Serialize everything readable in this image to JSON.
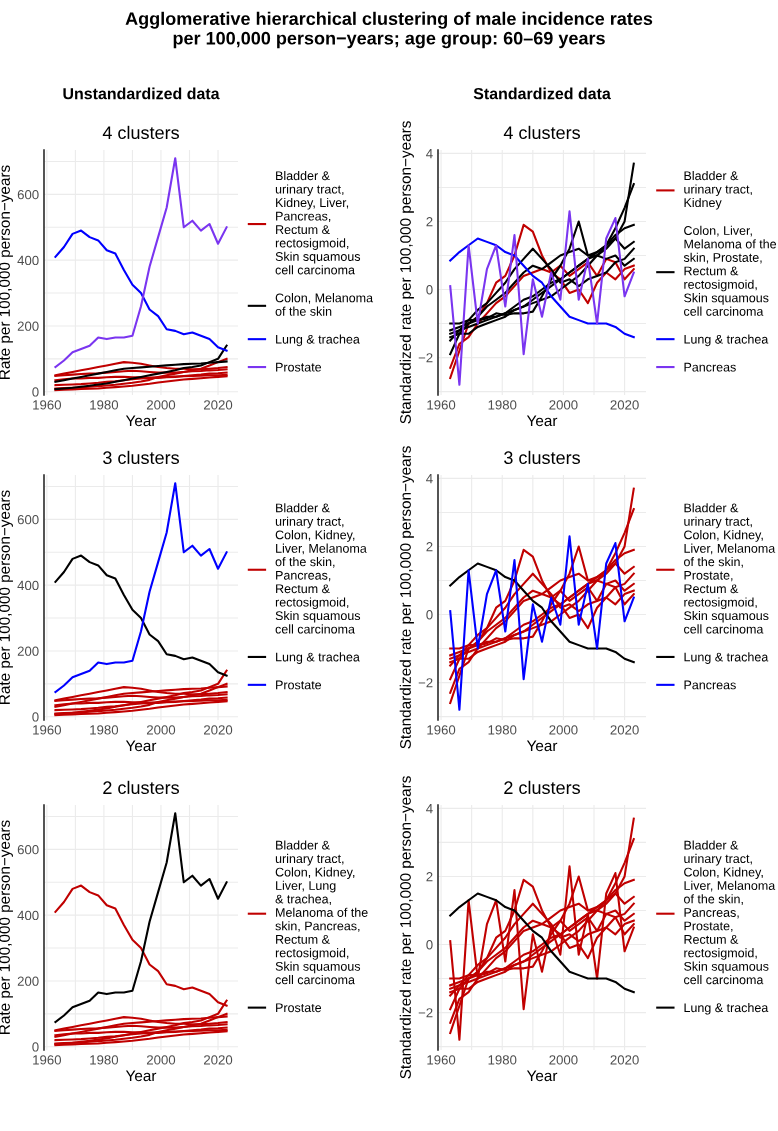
{
  "chart_data": [
    {
      "type": "line",
      "title": "4 clusters",
      "subtitle": "Unstandardized data",
      "annotations": [
        "Agglomerative hierarchical clustering of male incidence rates\nper 100,000 person−years; age group: 60–69 years"
      ],
      "xlabel": "Year",
      "ylabel": "Rate per 100,000 person−years",
      "grid": true,
      "legend": "right",
      "xlim": [
        1959,
        2027
      ],
      "ylim": [
        -10,
        735
      ],
      "xticks": [
        1960,
        {
          "value": 1970,
          "label": null
        },
        1980,
        {
          "value": 1990,
          "label": null
        },
        2000,
        {
          "value": 2010,
          "label": null
        },
        2020
      ],
      "yticks": [
        0,
        {
          "value": 100,
          "label": null
        },
        200,
        {
          "value": 300,
          "label": null
        },
        400,
        {
          "value": 500,
          "label": null
        },
        600,
        {
          "value": 700,
          "label": null
        }
      ],
      "x": [
        1963,
        1966,
        1969,
        1972,
        1975,
        1978,
        1981,
        1984,
        1987,
        1990,
        1993,
        1996,
        1999,
        2002,
        2005,
        2008,
        2011,
        2014,
        2017,
        2020,
        2023
      ],
      "series": [
        {
          "name": "Bladder &\nurinary tract,\nKidney, Liver,\nPancreas,\nRectum &\nrectosigmoid,\nSkin squamous\ncell carcinoma",
          "color": "#c00000",
          "values": [
            50,
            55,
            60,
            65,
            70,
            75,
            80,
            85,
            90,
            88,
            85,
            80,
            75,
            72,
            70,
            70,
            68,
            68,
            70,
            72,
            75
          ]
        },
        {
          "color": "#c00000",
          "values": [
            20,
            21,
            22,
            23,
            25,
            27,
            30,
            32,
            35,
            38,
            40,
            42,
            44,
            45,
            46,
            47,
            48,
            49,
            50,
            50,
            51
          ]
        },
        {
          "color": "#c00000",
          "values": [
            5,
            6,
            7,
            8,
            9,
            10,
            12,
            14,
            16,
            18,
            21,
            24,
            28,
            31,
            34,
            37,
            39,
            41,
            43,
            45,
            47
          ]
        },
        {
          "color": "#c00000",
          "values": [
            35,
            38,
            40,
            40,
            42,
            42,
            44,
            45,
            45,
            44,
            44,
            42,
            42,
            44,
            45,
            48,
            50,
            52,
            55,
            56,
            58
          ]
        },
        {
          "color": "#c00000",
          "values": [
            48,
            50,
            52,
            54,
            55,
            56,
            58,
            60,
            62,
            64,
            62,
            60,
            58,
            58,
            58,
            60,
            62,
            63,
            65,
            66,
            68
          ]
        },
        {
          "color": "#c00000",
          "values": [
            10,
            11,
            12,
            13,
            15,
            17,
            19,
            21,
            24,
            27,
            31,
            36,
            45,
            50,
            55,
            60,
            65,
            70,
            80,
            90,
            100
          ]
        },
        {
          "name": "Colon, Melanoma\nof the skin",
          "color": "#000000",
          "values": [
            30,
            35,
            40,
            45,
            50,
            55,
            60,
            65,
            70,
            72,
            74,
            76,
            78,
            80,
            82,
            84,
            85,
            86,
            88,
            90,
            92
          ]
        },
        {
          "color": "#000000",
          "values": [
            8,
            10,
            12,
            15,
            18,
            22,
            25,
            30,
            35,
            40,
            45,
            50,
            55,
            60,
            65,
            72,
            75,
            80,
            90,
            100,
            140
          ]
        },
        {
          "name": "Lung & trachea",
          "color": "#0000ff",
          "values": [
            410,
            440,
            480,
            490,
            470,
            460,
            430,
            420,
            370,
            325,
            300,
            250,
            230,
            190,
            185,
            175,
            180,
            170,
            160,
            135,
            125
          ]
        },
        {
          "name": "Prostate",
          "color": "#7a35f0",
          "values": [
            75,
            95,
            120,
            130,
            140,
            165,
            160,
            165,
            165,
            170,
            260,
            380,
            470,
            560,
            710,
            500,
            520,
            490,
            510,
            450,
            500
          ]
        }
      ]
    },
    {
      "type": "line",
      "title": "4 clusters",
      "subtitle": "Standardized data",
      "xlabel": "Year",
      "ylabel": "Standardized rate per 100,000 person−years",
      "grid": true,
      "legend": "right",
      "xlim": [
        1959,
        2027
      ],
      "ylim": [
        -3.1,
        4.1
      ],
      "xticks": [
        1960,
        {
          "value": 1970,
          "label": null
        },
        1980,
        {
          "value": 1990,
          "label": null
        },
        2000,
        {
          "value": 2010,
          "label": null
        },
        2020
      ],
      "yticks": [
        {
          "value": -3,
          "label": null
        },
        {
          "value": -2,
          "label": "−2"
        },
        {
          "value": -1,
          "label": null
        },
        0,
        {
          "value": 1,
          "label": null
        },
        2,
        {
          "value": 3,
          "label": null
        },
        4
      ],
      "x": [
        1963,
        1966,
        1969,
        1972,
        1975,
        1978,
        1981,
        1984,
        1987,
        1990,
        1993,
        1996,
        1999,
        2002,
        2005,
        2008,
        2011,
        2014,
        2017,
        2020,
        2023
      ],
      "series": [
        {
          "name": "Bladder &\nurinary tract,\nKidney",
          "color": "#c00000",
          "values": [
            -2.6,
            -1.8,
            -1.0,
            -0.8,
            -0.4,
            0.2,
            0.4,
            1.0,
            1.9,
            1.7,
            1.0,
            0.5,
            0.3,
            -0.1,
            0.0,
            -0.4,
            0.2,
            0.5,
            0.3,
            0.6,
            0.7
          ]
        },
        {
          "color": "#c00000",
          "values": [
            -2.3,
            -1.6,
            -1.4,
            -1.0,
            -0.7,
            -0.4,
            -0.2,
            0.1,
            0.4,
            0.5,
            0.6,
            0.5,
            0.7,
            0.4,
            0.6,
            0.8,
            0.4,
            0.9,
            0.8,
            0.3,
            0.6
          ]
        },
        {
          "name": "Colon, Liver,\nMelanoma of the\nskin, Prostate,\nRectum &\nrectosigmoid,\nSkin squamous\ncell carcinoma",
          "color": "#000000",
          "values": [
            -1.9,
            -1.3,
            -1.0,
            -0.8,
            -0.5,
            -0.3,
            -0.1,
            0.2,
            0.5,
            0.7,
            0.6,
            0.8,
            1.0,
            1.1,
            1.2,
            1.0,
            1.1,
            1.3,
            1.5,
            1.2,
            1.4
          ]
        },
        {
          "color": "#000000",
          "values": [
            -1.4,
            -1.3,
            -1.3,
            -1.1,
            -1.0,
            -0.9,
            -0.8,
            -0.6,
            -0.5,
            -0.3,
            -0.1,
            0.1,
            0.3,
            0.5,
            0.7,
            0.9,
            1.1,
            1.3,
            1.6,
            1.8,
            1.9
          ]
        },
        {
          "color": "#000000",
          "values": [
            -1.3,
            -1.2,
            -1.1,
            -1.0,
            -0.9,
            -0.8,
            -0.7,
            -0.5,
            -0.3,
            -0.2,
            0.0,
            0.2,
            0.3,
            0.5,
            0.7,
            0.9,
            1.0,
            1.2,
            1.5,
            2.0,
            3.7
          ]
        },
        {
          "color": "#000000",
          "values": [
            -1.2,
            -1.1,
            -1.0,
            -0.9,
            -0.85,
            -0.7,
            -0.75,
            -0.7,
            -0.7,
            -0.65,
            -0.2,
            0.3,
            0.7,
            1.2,
            2.0,
            1.0,
            1.0,
            0.9,
            1.0,
            0.7,
            0.9
          ]
        },
        {
          "color": "#000000",
          "values": [
            -1.5,
            -1.2,
            -0.9,
            -0.6,
            -0.4,
            -0.1,
            0.2,
            0.6,
            0.9,
            1.2,
            0.9,
            0.6,
            0.2,
            0.3,
            0.1,
            0.3,
            0.4,
            0.5,
            0.8,
            0.9,
            1.2
          ]
        },
        {
          "color": "#000000",
          "values": [
            -1.0,
            -1.0,
            -0.9,
            -0.9,
            -0.8,
            -0.8,
            -0.7,
            -0.6,
            -0.5,
            -0.4,
            -0.3,
            -0.2,
            0.0,
            0.2,
            0.4,
            0.7,
            1.0,
            1.3,
            1.8,
            2.4,
            3.1
          ]
        },
        {
          "name": "Lung & trachea",
          "color": "#0000ff",
          "values": [
            0.85,
            1.1,
            1.3,
            1.5,
            1.4,
            1.3,
            1.1,
            1.0,
            0.7,
            0.4,
            0.2,
            -0.2,
            -0.5,
            -0.8,
            -0.9,
            -1.0,
            -1.0,
            -1.0,
            -1.1,
            -1.3,
            -1.4
          ]
        },
        {
          "name": "Pancreas",
          "color": "#7a35f0",
          "values": [
            0.1,
            -2.8,
            1.3,
            -1.0,
            0.6,
            1.3,
            -0.5,
            1.6,
            -1.9,
            0.3,
            -0.8,
            0.5,
            -0.3,
            2.3,
            -0.3,
            0.9,
            -1.0,
            1.5,
            2.1,
            -0.2,
            0.5
          ]
        }
      ]
    },
    {
      "type": "line",
      "title": "3 clusters",
      "xlabel": "Year",
      "ylabel": "Rate per 100,000 person−years",
      "grid": true,
      "legend": "right",
      "xlim": [
        1959,
        2027
      ],
      "ylim": [
        -10,
        735
      ],
      "xticks": [
        1960,
        {
          "value": 1970,
          "label": null
        },
        1980,
        {
          "value": 1990,
          "label": null
        },
        2000,
        {
          "value": 2010,
          "label": null
        },
        2020
      ],
      "yticks": [
        0,
        {
          "value": 100,
          "label": null
        },
        200,
        {
          "value": 300,
          "label": null
        },
        400,
        {
          "value": 500,
          "label": null
        },
        600,
        {
          "value": 700,
          "label": null
        }
      ],
      "x": [
        1963,
        1966,
        1969,
        1972,
        1975,
        1978,
        1981,
        1984,
        1987,
        1990,
        1993,
        1996,
        1999,
        2002,
        2005,
        2008,
        2011,
        2014,
        2017,
        2020,
        2023
      ],
      "series": [
        {
          "name": "Bladder &\nurinary tract,\nColon, Kidney,\nLiver, Melanoma\nof the skin,\nPancreas,\nRectum &\nrectosigmoid,\nSkin squamous\ncell carcinoma",
          "color": "#c00000",
          "values": [
            50,
            55,
            60,
            65,
            70,
            75,
            80,
            85,
            90,
            88,
            85,
            80,
            75,
            72,
            70,
            70,
            68,
            68,
            70,
            72,
            75
          ]
        },
        {
          "color": "#c00000",
          "values": [
            30,
            35,
            40,
            45,
            50,
            55,
            60,
            65,
            70,
            72,
            74,
            76,
            78,
            80,
            82,
            84,
            85,
            86,
            88,
            90,
            92
          ]
        },
        {
          "color": "#c00000",
          "values": [
            20,
            21,
            22,
            23,
            25,
            27,
            30,
            32,
            35,
            38,
            40,
            42,
            44,
            45,
            46,
            47,
            48,
            49,
            50,
            50,
            51
          ]
        },
        {
          "color": "#c00000",
          "values": [
            5,
            6,
            7,
            8,
            9,
            10,
            12,
            14,
            16,
            18,
            21,
            24,
            28,
            31,
            34,
            37,
            39,
            41,
            43,
            45,
            47
          ]
        },
        {
          "color": "#c00000",
          "values": [
            8,
            10,
            12,
            15,
            18,
            22,
            25,
            30,
            35,
            40,
            45,
            50,
            55,
            60,
            65,
            72,
            75,
            80,
            90,
            100,
            140
          ]
        },
        {
          "color": "#c00000",
          "values": [
            35,
            38,
            40,
            40,
            42,
            42,
            44,
            45,
            45,
            44,
            44,
            42,
            42,
            44,
            45,
            48,
            50,
            52,
            55,
            56,
            58
          ]
        },
        {
          "color": "#c00000",
          "values": [
            48,
            50,
            52,
            54,
            55,
            56,
            58,
            60,
            62,
            64,
            62,
            60,
            58,
            58,
            58,
            60,
            62,
            63,
            65,
            66,
            68
          ]
        },
        {
          "color": "#c00000",
          "values": [
            10,
            11,
            12,
            13,
            15,
            17,
            19,
            21,
            24,
            27,
            31,
            36,
            45,
            50,
            55,
            60,
            65,
            70,
            80,
            90,
            100
          ]
        },
        {
          "name": "Lung & trachea",
          "color": "#000000",
          "values": [
            410,
            440,
            480,
            490,
            470,
            460,
            430,
            420,
            370,
            325,
            300,
            250,
            230,
            190,
            185,
            175,
            180,
            170,
            160,
            135,
            125
          ]
        },
        {
          "name": "Prostate",
          "color": "#0000ff",
          "values": [
            75,
            95,
            120,
            130,
            140,
            165,
            160,
            165,
            165,
            170,
            260,
            380,
            470,
            560,
            710,
            500,
            520,
            490,
            510,
            450,
            500
          ]
        }
      ]
    },
    {
      "type": "line",
      "title": "3 clusters",
      "xlabel": "Year",
      "ylabel": "Standardized rate per 100,000 person−years",
      "grid": true,
      "legend": "right",
      "xlim": [
        1959,
        2027
      ],
      "ylim": [
        -3.1,
        4.1
      ],
      "xticks": [
        1960,
        {
          "value": 1970,
          "label": null
        },
        1980,
        {
          "value": 1990,
          "label": null
        },
        2000,
        {
          "value": 2010,
          "label": null
        },
        2020
      ],
      "yticks": [
        {
          "value": -3,
          "label": null
        },
        {
          "value": -2,
          "label": "−2"
        },
        {
          "value": -1,
          "label": null
        },
        0,
        {
          "value": 1,
          "label": null
        },
        2,
        {
          "value": 3,
          "label": null
        },
        4
      ],
      "x": [
        1963,
        1966,
        1969,
        1972,
        1975,
        1978,
        1981,
        1984,
        1987,
        1990,
        1993,
        1996,
        1999,
        2002,
        2005,
        2008,
        2011,
        2014,
        2017,
        2020,
        2023
      ],
      "series": [
        {
          "name": "Bladder &\nurinary tract,\nColon, Kidney,\nLiver, Melanoma\nof the skin,\nProstate,\nRectum &\nrectosigmoid,\nSkin squamous\ncell carcinoma",
          "color": "#c00000",
          "values": [
            -2.6,
            -1.8,
            -1.0,
            -0.8,
            -0.4,
            0.2,
            0.4,
            1.0,
            1.9,
            1.7,
            1.0,
            0.5,
            0.3,
            -0.1,
            0.0,
            -0.4,
            0.2,
            0.5,
            0.3,
            0.6,
            0.7
          ]
        },
        {
          "color": "#c00000",
          "values": [
            -1.9,
            -1.3,
            -1.0,
            -0.8,
            -0.5,
            -0.3,
            -0.1,
            0.2,
            0.5,
            0.7,
            0.6,
            0.8,
            1.0,
            1.1,
            1.2,
            1.0,
            1.1,
            1.3,
            1.5,
            1.2,
            1.4
          ]
        },
        {
          "color": "#c00000",
          "values": [
            -2.3,
            -1.6,
            -1.4,
            -1.0,
            -0.7,
            -0.4,
            -0.2,
            0.1,
            0.4,
            0.5,
            0.6,
            0.5,
            0.7,
            0.4,
            0.6,
            0.8,
            0.4,
            0.9,
            0.8,
            0.3,
            0.6
          ]
        },
        {
          "color": "#c00000",
          "values": [
            -1.4,
            -1.3,
            -1.3,
            -1.1,
            -1.0,
            -0.9,
            -0.8,
            -0.6,
            -0.5,
            -0.3,
            -0.1,
            0.1,
            0.3,
            0.5,
            0.7,
            0.9,
            1.1,
            1.3,
            1.6,
            1.8,
            1.9
          ]
        },
        {
          "color": "#c00000",
          "values": [
            -1.3,
            -1.2,
            -1.1,
            -1.0,
            -0.9,
            -0.8,
            -0.7,
            -0.5,
            -0.3,
            -0.2,
            0.0,
            0.2,
            0.3,
            0.5,
            0.7,
            0.9,
            1.0,
            1.2,
            1.5,
            2.0,
            3.7
          ]
        },
        {
          "color": "#c00000",
          "values": [
            -1.2,
            -1.1,
            -1.0,
            -0.9,
            -0.85,
            -0.7,
            -0.75,
            -0.7,
            -0.7,
            -0.65,
            -0.2,
            0.3,
            0.7,
            1.2,
            2.0,
            1.0,
            1.0,
            0.9,
            1.0,
            0.7,
            0.9
          ]
        },
        {
          "color": "#c00000",
          "values": [
            -1.5,
            -1.2,
            -0.9,
            -0.6,
            -0.4,
            -0.1,
            0.2,
            0.6,
            0.9,
            1.2,
            0.9,
            0.6,
            0.2,
            0.3,
            0.1,
            0.3,
            0.4,
            0.5,
            0.8,
            0.9,
            1.2
          ]
        },
        {
          "color": "#c00000",
          "values": [
            -1.0,
            -1.0,
            -0.9,
            -0.9,
            -0.8,
            -0.8,
            -0.7,
            -0.6,
            -0.5,
            -0.4,
            -0.3,
            -0.2,
            0.0,
            0.2,
            0.4,
            0.7,
            1.0,
            1.3,
            1.8,
            2.4,
            3.1
          ]
        },
        {
          "name": "Lung & trachea",
          "color": "#000000",
          "values": [
            0.85,
            1.1,
            1.3,
            1.5,
            1.4,
            1.3,
            1.1,
            1.0,
            0.7,
            0.4,
            0.2,
            -0.2,
            -0.5,
            -0.8,
            -0.9,
            -1.0,
            -1.0,
            -1.0,
            -1.1,
            -1.3,
            -1.4
          ]
        },
        {
          "name": "Pancreas",
          "color": "#0000ff",
          "values": [
            0.1,
            -2.8,
            1.3,
            -1.0,
            0.6,
            1.3,
            -0.5,
            1.6,
            -1.9,
            0.3,
            -0.8,
            0.5,
            -0.3,
            2.3,
            -0.3,
            0.9,
            -1.0,
            1.5,
            2.1,
            -0.2,
            0.5
          ]
        }
      ]
    },
    {
      "type": "line",
      "title": "2 clusters",
      "xlabel": "Year",
      "ylabel": "Rate per 100,000 person−years",
      "grid": true,
      "legend": "right",
      "xlim": [
        1959,
        2027
      ],
      "ylim": [
        -10,
        735
      ],
      "xticks": [
        1960,
        {
          "value": 1970,
          "label": null
        },
        1980,
        {
          "value": 1990,
          "label": null
        },
        2000,
        {
          "value": 2010,
          "label": null
        },
        2020
      ],
      "yticks": [
        0,
        {
          "value": 100,
          "label": null
        },
        200,
        {
          "value": 300,
          "label": null
        },
        400,
        {
          "value": 500,
          "label": null
        },
        600,
        {
          "value": 700,
          "label": null
        }
      ],
      "x": [
        1963,
        1966,
        1969,
        1972,
        1975,
        1978,
        1981,
        1984,
        1987,
        1990,
        1993,
        1996,
        1999,
        2002,
        2005,
        2008,
        2011,
        2014,
        2017,
        2020,
        2023
      ],
      "series": [
        {
          "name": "Bladder &\nurinary tract,\nColon, Kidney,\nLiver, Lung\n& trachea,\nMelanoma of the\nskin, Pancreas,\nRectum &\nrectosigmoid,\nSkin squamous\ncell carcinoma",
          "color": "#c00000",
          "values": [
            50,
            55,
            60,
            65,
            70,
            75,
            80,
            85,
            90,
            88,
            85,
            80,
            75,
            72,
            70,
            70,
            68,
            68,
            70,
            72,
            75
          ]
        },
        {
          "color": "#c00000",
          "values": [
            30,
            35,
            40,
            45,
            50,
            55,
            60,
            65,
            70,
            72,
            74,
            76,
            78,
            80,
            82,
            84,
            85,
            86,
            88,
            90,
            92
          ]
        },
        {
          "color": "#c00000",
          "values": [
            20,
            21,
            22,
            23,
            25,
            27,
            30,
            32,
            35,
            38,
            40,
            42,
            44,
            45,
            46,
            47,
            48,
            49,
            50,
            50,
            51
          ]
        },
        {
          "color": "#c00000",
          "values": [
            5,
            6,
            7,
            8,
            9,
            10,
            12,
            14,
            16,
            18,
            21,
            24,
            28,
            31,
            34,
            37,
            39,
            41,
            43,
            45,
            47
          ]
        },
        {
          "color": "#c00000",
          "values": [
            410,
            440,
            480,
            490,
            470,
            460,
            430,
            420,
            370,
            325,
            300,
            250,
            230,
            190,
            185,
            175,
            180,
            170,
            160,
            135,
            125
          ]
        },
        {
          "color": "#c00000",
          "values": [
            8,
            10,
            12,
            15,
            18,
            22,
            25,
            30,
            35,
            40,
            45,
            50,
            55,
            60,
            65,
            72,
            75,
            80,
            90,
            100,
            140
          ]
        },
        {
          "color": "#c00000",
          "values": [
            35,
            38,
            40,
            40,
            42,
            42,
            44,
            45,
            45,
            44,
            44,
            42,
            42,
            44,
            45,
            48,
            50,
            52,
            55,
            56,
            58
          ]
        },
        {
          "color": "#c00000",
          "values": [
            48,
            50,
            52,
            54,
            55,
            56,
            58,
            60,
            62,
            64,
            62,
            60,
            58,
            58,
            58,
            60,
            62,
            63,
            65,
            66,
            68
          ]
        },
        {
          "color": "#c00000",
          "values": [
            10,
            11,
            12,
            13,
            15,
            17,
            19,
            21,
            24,
            27,
            31,
            36,
            45,
            50,
            55,
            60,
            65,
            70,
            80,
            90,
            100
          ]
        },
        {
          "name": "Prostate",
          "color": "#000000",
          "values": [
            75,
            95,
            120,
            130,
            140,
            165,
            160,
            165,
            165,
            170,
            260,
            380,
            470,
            560,
            710,
            500,
            520,
            490,
            510,
            450,
            500
          ]
        }
      ]
    },
    {
      "type": "line",
      "title": "2 clusters",
      "xlabel": "Year",
      "ylabel": "Standardized rate per 100,000 person−years",
      "grid": true,
      "legend": "right",
      "xlim": [
        1959,
        2027
      ],
      "ylim": [
        -3.1,
        4.1
      ],
      "xticks": [
        1960,
        {
          "value": 1970,
          "label": null
        },
        1980,
        {
          "value": 1990,
          "label": null
        },
        2000,
        {
          "value": 2010,
          "label": null
        },
        2020
      ],
      "yticks": [
        {
          "value": -3,
          "label": null
        },
        {
          "value": -2,
          "label": "−2"
        },
        {
          "value": -1,
          "label": null
        },
        0,
        {
          "value": 1,
          "label": null
        },
        2,
        {
          "value": 3,
          "label": null
        },
        4
      ],
      "x": [
        1963,
        1966,
        1969,
        1972,
        1975,
        1978,
        1981,
        1984,
        1987,
        1990,
        1993,
        1996,
        1999,
        2002,
        2005,
        2008,
        2011,
        2014,
        2017,
        2020,
        2023
      ],
      "series": [
        {
          "name": "Bladder &\nurinary tract,\nColon, Kidney,\nLiver, Melanoma\nof the skin,\nPancreas,\nProstate,\nRectum &\nrectosigmoid,\nSkin squamous\ncell carcinoma",
          "color": "#c00000",
          "values": [
            -2.6,
            -1.8,
            -1.0,
            -0.8,
            -0.4,
            0.2,
            0.4,
            1.0,
            1.9,
            1.7,
            1.0,
            0.5,
            0.3,
            -0.1,
            0.0,
            -0.4,
            0.2,
            0.5,
            0.3,
            0.6,
            0.7
          ]
        },
        {
          "color": "#c00000",
          "values": [
            -1.9,
            -1.3,
            -1.0,
            -0.8,
            -0.5,
            -0.3,
            -0.1,
            0.2,
            0.5,
            0.7,
            0.6,
            0.8,
            1.0,
            1.1,
            1.2,
            1.0,
            1.1,
            1.3,
            1.5,
            1.2,
            1.4
          ]
        },
        {
          "color": "#c00000",
          "values": [
            -2.3,
            -1.6,
            -1.4,
            -1.0,
            -0.7,
            -0.4,
            -0.2,
            0.1,
            0.4,
            0.5,
            0.6,
            0.5,
            0.7,
            0.4,
            0.6,
            0.8,
            0.4,
            0.9,
            0.8,
            0.3,
            0.6
          ]
        },
        {
          "color": "#c00000",
          "values": [
            -1.4,
            -1.3,
            -1.3,
            -1.1,
            -1.0,
            -0.9,
            -0.8,
            -0.6,
            -0.5,
            -0.3,
            -0.1,
            0.1,
            0.3,
            0.5,
            0.7,
            0.9,
            1.1,
            1.3,
            1.6,
            1.8,
            1.9
          ]
        },
        {
          "color": "#c00000",
          "values": [
            -1.3,
            -1.2,
            -1.1,
            -1.0,
            -0.9,
            -0.8,
            -0.7,
            -0.5,
            -0.3,
            -0.2,
            0.0,
            0.2,
            0.3,
            0.5,
            0.7,
            0.9,
            1.0,
            1.2,
            1.5,
            2.0,
            3.7
          ]
        },
        {
          "color": "#c00000",
          "values": [
            0.1,
            -2.8,
            1.3,
            -1.0,
            0.6,
            1.3,
            -0.5,
            1.6,
            -1.9,
            0.3,
            -0.8,
            0.5,
            -0.3,
            2.3,
            -0.3,
            0.9,
            -1.0,
            1.5,
            2.1,
            -0.2,
            0.5
          ]
        },
        {
          "color": "#c00000",
          "values": [
            -1.2,
            -1.1,
            -1.0,
            -0.9,
            -0.85,
            -0.7,
            -0.75,
            -0.7,
            -0.7,
            -0.65,
            -0.2,
            0.3,
            0.7,
            1.2,
            2.0,
            1.0,
            1.0,
            0.9,
            1.0,
            0.7,
            0.9
          ]
        },
        {
          "color": "#c00000",
          "values": [
            -1.5,
            -1.2,
            -0.9,
            -0.6,
            -0.4,
            -0.1,
            0.2,
            0.6,
            0.9,
            1.2,
            0.9,
            0.6,
            0.2,
            0.3,
            0.1,
            0.3,
            0.4,
            0.5,
            0.8,
            0.9,
            1.2
          ]
        },
        {
          "color": "#c00000",
          "values": [
            -1.0,
            -1.0,
            -0.9,
            -0.9,
            -0.8,
            -0.8,
            -0.7,
            -0.6,
            -0.5,
            -0.4,
            -0.3,
            -0.2,
            0.0,
            0.2,
            0.4,
            0.7,
            1.0,
            1.3,
            1.8,
            2.4,
            3.1
          ]
        },
        {
          "name": "Lung & trachea",
          "color": "#000000",
          "values": [
            0.85,
            1.1,
            1.3,
            1.5,
            1.4,
            1.3,
            1.1,
            1.0,
            0.7,
            0.4,
            0.2,
            -0.2,
            -0.5,
            -0.8,
            -0.9,
            -1.0,
            -1.0,
            -1.0,
            -1.1,
            -1.3,
            -1.4
          ]
        }
      ]
    }
  ]
}
